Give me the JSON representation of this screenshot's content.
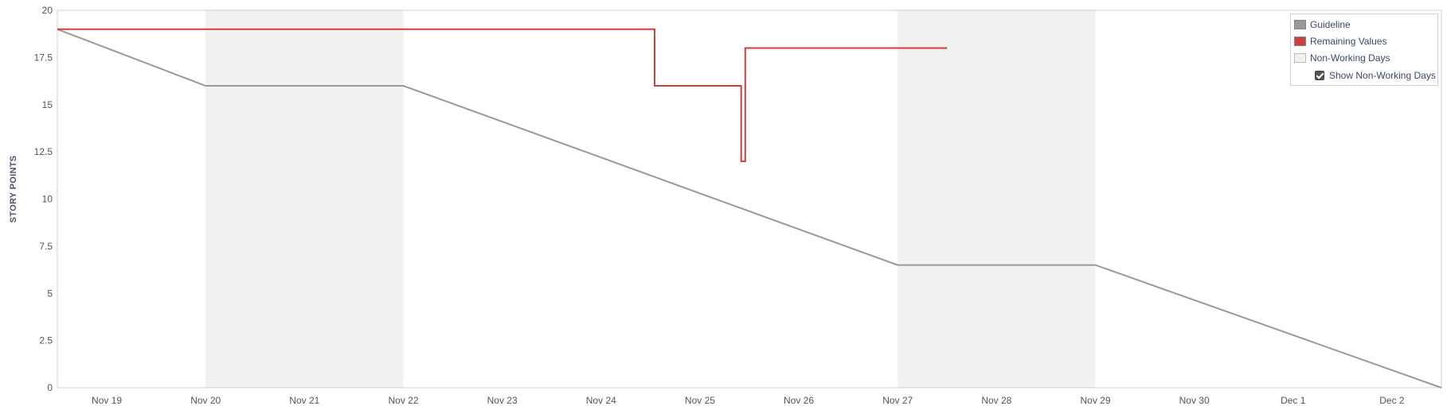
{
  "chart_data": {
    "type": "line",
    "xlabel": "",
    "ylabel": "STORY POINTS",
    "ylim": [
      0,
      20
    ],
    "y_ticks": [
      "0",
      "2.5",
      "5",
      "7.5",
      "10",
      "12.5",
      "15",
      "17.5",
      "20"
    ],
    "x_start": "2020-11-18T12:00",
    "x_end": "2020-12-02T12:00",
    "x_ticks": [
      {
        "date": "2020-11-19",
        "label": "Nov 19"
      },
      {
        "date": "2020-11-20",
        "label": "Nov 20"
      },
      {
        "date": "2020-11-21",
        "label": "Nov 21"
      },
      {
        "date": "2020-11-22",
        "label": "Nov 22"
      },
      {
        "date": "2020-11-23",
        "label": "Nov 23"
      },
      {
        "date": "2020-11-24",
        "label": "Nov 24"
      },
      {
        "date": "2020-11-25",
        "label": "Nov 25"
      },
      {
        "date": "2020-11-26",
        "label": "Nov 26"
      },
      {
        "date": "2020-11-27",
        "label": "Nov 27"
      },
      {
        "date": "2020-11-28",
        "label": "Nov 28"
      },
      {
        "date": "2020-11-29",
        "label": "Nov 29"
      },
      {
        "date": "2020-11-30",
        "label": "Nov 30"
      },
      {
        "date": "2020-12-01",
        "label": "Dec 1"
      },
      {
        "date": "2020-12-02",
        "label": "Dec 2"
      }
    ],
    "non_working_days": [
      [
        "2020-11-20T00:00",
        "2020-11-22T00:00"
      ],
      [
        "2020-11-27T00:00",
        "2020-11-29T00:00"
      ]
    ],
    "series": [
      {
        "name": "Guideline",
        "color": "#999999",
        "points": [
          {
            "x": "2020-11-18T12:00",
            "y": 19
          },
          {
            "x": "2020-11-20T00:00",
            "y": 16
          },
          {
            "x": "2020-11-22T00:00",
            "y": 16
          },
          {
            "x": "2020-11-27T00:00",
            "y": 6.5
          },
          {
            "x": "2020-11-29T00:00",
            "y": 6.5
          },
          {
            "x": "2020-12-02T12:00",
            "y": 0
          }
        ]
      },
      {
        "name": "Remaining Values",
        "color": "#d0403a",
        "points": [
          {
            "x": "2020-11-18T12:00",
            "y": 19
          },
          {
            "x": "2020-11-24T13:00",
            "y": 19
          },
          {
            "x": "2020-11-24T13:00",
            "y": 16
          },
          {
            "x": "2020-11-25T10:00",
            "y": 16
          },
          {
            "x": "2020-11-25T10:00",
            "y": 12
          },
          {
            "x": "2020-11-25T11:00",
            "y": 12
          },
          {
            "x": "2020-11-25T11:00",
            "y": 18
          },
          {
            "x": "2020-11-27T12:00",
            "y": 18
          }
        ]
      }
    ],
    "legend": {
      "position": "top-right",
      "items": [
        {
          "label": "Guideline",
          "color": "#999999"
        },
        {
          "label": "Remaining Values",
          "color": "#d0403a"
        },
        {
          "label": "Non-Working Days",
          "color": "#f1f1f1"
        }
      ],
      "show_non_working_label": "Show Non-Working Days",
      "show_non_working_checked": true
    }
  }
}
